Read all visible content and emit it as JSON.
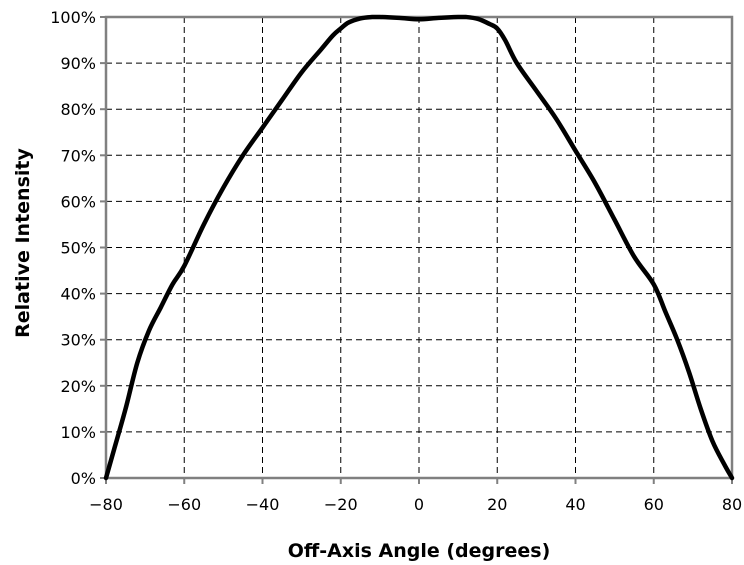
{
  "chart_data": {
    "type": "line",
    "title": "",
    "xlabel": "Off-Axis Angle (degrees)",
    "ylabel": "Relative Intensity",
    "xlim": [
      -80,
      80
    ],
    "ylim": [
      0,
      100
    ],
    "x_ticks": [
      -80,
      -60,
      -40,
      -20,
      0,
      20,
      40,
      60,
      80
    ],
    "x_tick_labels": [
      "−80",
      "−60",
      "−40",
      "−20",
      "0",
      "20",
      "40",
      "60",
      "80"
    ],
    "y_ticks": [
      0,
      10,
      20,
      30,
      40,
      50,
      60,
      70,
      80,
      90,
      100
    ],
    "y_tick_labels": [
      "0%",
      "10%",
      "20%",
      "30%",
      "40%",
      "50%",
      "60%",
      "70%",
      "80%",
      "90%",
      "100%"
    ],
    "grid": true,
    "grid_style": "dashed",
    "legend": "none",
    "series": [
      {
        "color": "#000000",
        "x": [
          -80,
          -78,
          -75,
          -72,
          -69,
          -66,
          -63,
          -60,
          -55,
          -50,
          -45,
          -40,
          -35,
          -30,
          -25,
          -22,
          -20,
          -18,
          -15,
          -12,
          -10,
          -5,
          0,
          5,
          10,
          12,
          15,
          18,
          20,
          22,
          25,
          30,
          35,
          40,
          45,
          50,
          55,
          60,
          63,
          66,
          69,
          72,
          75,
          78,
          80
        ],
        "y": [
          0,
          6,
          15,
          25,
          32,
          37,
          42,
          46,
          55,
          63,
          70,
          76,
          82,
          88,
          93,
          96,
          97.5,
          98.8,
          99.7,
          100,
          100,
          99.8,
          99.5,
          99.8,
          100,
          100,
          99.6,
          98.5,
          97.5,
          95,
          90,
          84,
          78,
          71,
          64,
          56,
          48,
          42,
          36,
          30,
          23,
          15,
          8,
          3,
          0
        ]
      }
    ]
  }
}
